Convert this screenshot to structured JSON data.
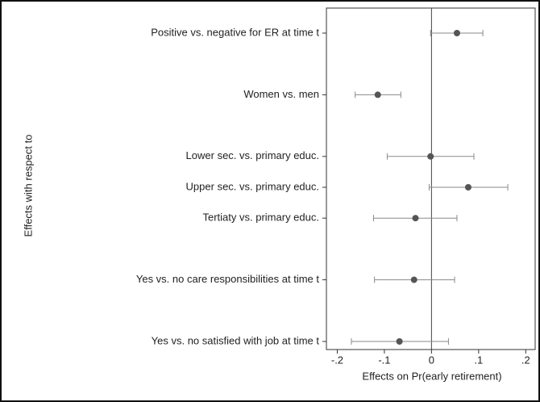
{
  "chart_data": {
    "type": "dot",
    "x_label": "Effects on Pr(early retirement)",
    "y_label": "Effects with respect to",
    "categories": [
      "Positive vs. negative for ER at time t",
      null,
      "Women vs. men",
      null,
      "Lower sec. vs. primary educ.",
      "Upper sec. vs. primary educ.",
      "Tertiaty vs. primary educ.",
      null,
      "Yes vs. no care responsibilities at time t",
      null,
      "Yes vs. no satisfied with job at time t"
    ],
    "series": [
      {
        "color": "#555555",
        "error_color": "#8a8a8a",
        "values": [
          0.054,
          null,
          -0.114,
          null,
          -0.002,
          0.078,
          -0.034,
          null,
          -0.037,
          null,
          -0.068
        ],
        "lower": [
          -0.002,
          null,
          -0.162,
          null,
          -0.094,
          -0.005,
          -0.123,
          null,
          -0.121,
          null,
          -0.17
        ],
        "upper": [
          0.109,
          null,
          -0.065,
          null,
          0.09,
          0.162,
          0.054,
          null,
          0.049,
          null,
          0.036
        ]
      }
    ],
    "xlim": [
      -0.223,
      0.22
    ],
    "xticks": [
      {
        "value": -0.2,
        "label": "-.2"
      },
      {
        "value": -0.1,
        "label": "-.1"
      },
      0,
      {
        "value": 0.1,
        "label": ".1"
      },
      {
        "value": 0.2,
        "label": ".2"
      }
    ],
    "reference_line": 0
  }
}
